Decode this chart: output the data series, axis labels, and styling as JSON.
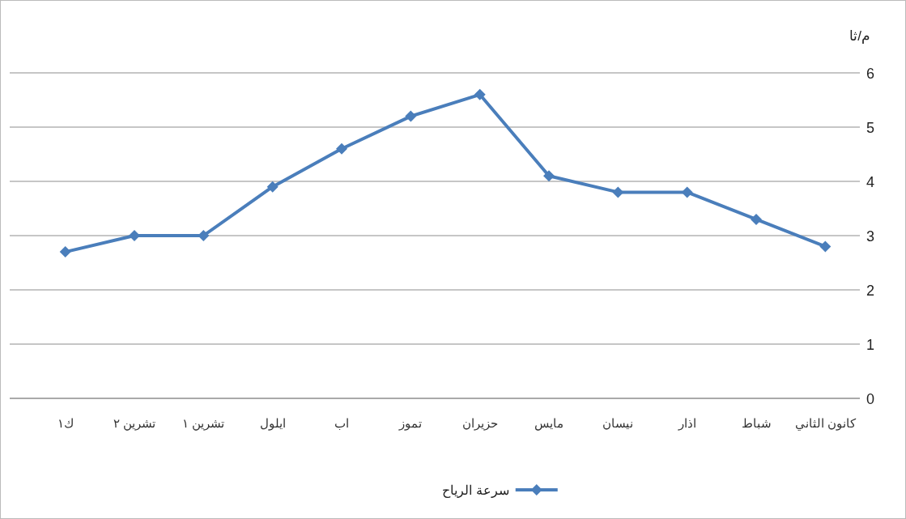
{
  "chart_data": {
    "type": "line",
    "ylabel": "م/ثا",
    "categories": [
      "ك١",
      "تشرين ٢",
      "تشرين ١",
      "ايلول",
      "اب",
      "تموز",
      "حزيران",
      "مايس",
      "نيسان",
      "اذار",
      "شباط",
      "كانون الثاني"
    ],
    "series": [
      {
        "name": "سرعة الرياح",
        "color": "#4a7ebb",
        "values": [
          2.7,
          3.0,
          3.0,
          3.9,
          4.6,
          5.2,
          5.6,
          4.1,
          3.8,
          3.8,
          3.3,
          2.8
        ]
      }
    ],
    "ylim": [
      0,
      6
    ],
    "yticks": [
      0,
      1,
      2,
      3,
      4,
      5,
      6
    ],
    "grid": "y",
    "legend": "bottom",
    "marker": "diamond",
    "line_style": "solid"
  }
}
